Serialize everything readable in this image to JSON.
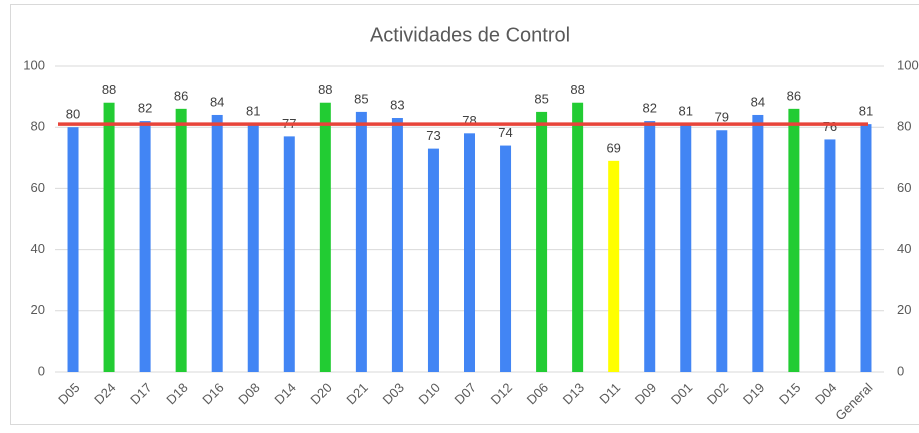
{
  "chart_data": {
    "type": "bar",
    "title": "Actividades de Control",
    "categories": [
      "D05",
      "D24",
      "D17",
      "D18",
      "D16",
      "D08",
      "D14",
      "D20",
      "D21",
      "D03",
      "D10",
      "D07",
      "D12",
      "D06",
      "D13",
      "D11",
      "D09",
      "D01",
      "D02",
      "D19",
      "D15",
      "D04",
      "General"
    ],
    "values": [
      80,
      88,
      82,
      86,
      84,
      81,
      77,
      88,
      85,
      83,
      73,
      78,
      74,
      85,
      88,
      69,
      82,
      81,
      79,
      84,
      86,
      76,
      81
    ],
    "colors": [
      "#4285f4",
      "#22cc33",
      "#4285f4",
      "#22cc33",
      "#4285f4",
      "#4285f4",
      "#4285f4",
      "#22cc33",
      "#4285f4",
      "#4285f4",
      "#4285f4",
      "#4285f4",
      "#4285f4",
      "#22cc33",
      "#22cc33",
      "#ffff00",
      "#4285f4",
      "#4285f4",
      "#4285f4",
      "#4285f4",
      "#22cc33",
      "#4285f4",
      "#4285f4"
    ],
    "reference_line": {
      "value": 81,
      "color": "#e8443a"
    },
    "ylim": [
      0,
      100
    ],
    "yticks": [
      0,
      20,
      40,
      60,
      80,
      100
    ],
    "y2lim": [
      0,
      100
    ],
    "y2ticks": [
      0,
      20,
      40,
      60,
      80,
      100
    ],
    "grid": true
  }
}
